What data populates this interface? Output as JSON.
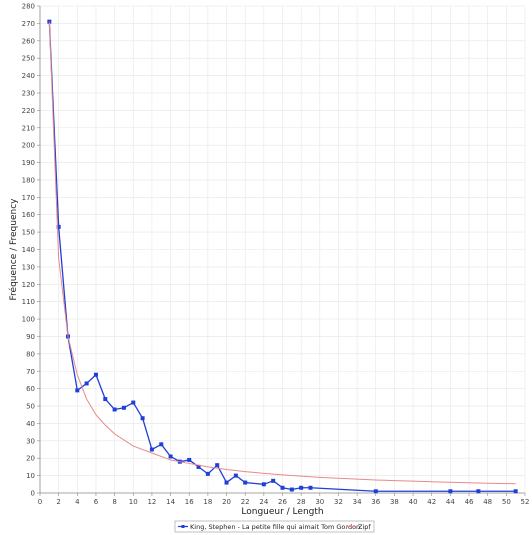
{
  "chart_data": {
    "type": "line",
    "title": "",
    "xlabel": "Longueur / Length",
    "ylabel": "Fréquence / Frequency",
    "xlim": [
      0,
      52
    ],
    "ylim": [
      0,
      280
    ],
    "x_ticks": [
      0,
      2,
      4,
      6,
      8,
      10,
      12,
      14,
      16,
      18,
      20,
      22,
      24,
      26,
      28,
      30,
      32,
      34,
      36,
      38,
      40,
      42,
      44,
      46,
      48,
      50,
      52
    ],
    "y_ticks": [
      0,
      10,
      20,
      30,
      40,
      50,
      60,
      70,
      80,
      90,
      100,
      110,
      120,
      130,
      140,
      150,
      160,
      170,
      180,
      190,
      200,
      210,
      220,
      230,
      240,
      250,
      260,
      270,
      280
    ],
    "grid": true,
    "legend_position": "bottom",
    "series": [
      {
        "name": "King, Stephen - La petite fille qui aimait Tom Gordon.",
        "color": "#1f3fd6",
        "marker": "square",
        "points": [
          [
            1,
            271
          ],
          [
            2,
            153
          ],
          [
            3,
            90
          ],
          [
            4,
            59
          ],
          [
            5,
            63
          ],
          [
            6,
            68
          ],
          [
            7,
            54
          ],
          [
            8,
            48
          ],
          [
            9,
            49
          ],
          [
            10,
            52
          ],
          [
            11,
            43
          ],
          [
            12,
            25
          ],
          [
            13,
            28
          ],
          [
            14,
            21
          ],
          [
            15,
            18
          ],
          [
            16,
            19
          ],
          [
            17,
            15
          ],
          [
            18,
            11
          ],
          [
            19,
            16
          ],
          [
            20,
            6
          ],
          [
            21,
            10
          ],
          [
            22,
            6
          ],
          [
            24,
            5
          ],
          [
            25,
            7
          ],
          [
            26,
            3
          ],
          [
            27,
            2
          ],
          [
            28,
            3
          ],
          [
            29,
            3
          ],
          [
            36,
            1
          ],
          [
            44,
            1
          ],
          [
            47,
            1
          ],
          [
            51,
            1
          ]
        ]
      },
      {
        "name": "Zipf",
        "color": "#e88a8a",
        "marker": "none",
        "points": [
          [
            1,
            271
          ],
          [
            2,
            135
          ],
          [
            3,
            90
          ],
          [
            4,
            68
          ],
          [
            5,
            54
          ],
          [
            6,
            45
          ],
          [
            7,
            39
          ],
          [
            8,
            34
          ],
          [
            10,
            27
          ],
          [
            12,
            23
          ],
          [
            14,
            19
          ],
          [
            16,
            17
          ],
          [
            18,
            15
          ],
          [
            20,
            13.5
          ],
          [
            22,
            12.3
          ],
          [
            24,
            11.3
          ],
          [
            26,
            10.4
          ],
          [
            28,
            9.7
          ],
          [
            30,
            9
          ],
          [
            32,
            8.5
          ],
          [
            34,
            8
          ],
          [
            36,
            7.5
          ],
          [
            38,
            7.1
          ],
          [
            40,
            6.8
          ],
          [
            42,
            6.5
          ],
          [
            44,
            6.2
          ],
          [
            46,
            5.9
          ],
          [
            48,
            5.6
          ],
          [
            50,
            5.4
          ],
          [
            51,
            5.3
          ]
        ]
      }
    ]
  }
}
